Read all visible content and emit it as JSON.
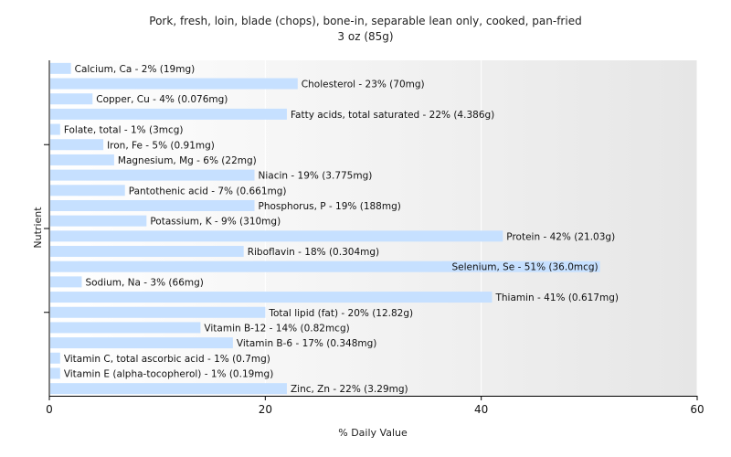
{
  "chart_data": {
    "type": "bar",
    "orientation": "horizontal",
    "title": "Pork, fresh, loin, blade (chops), bone-in, separable lean only, cooked, pan-fried",
    "subtitle": "3 oz (85g)",
    "xlabel": "% Daily Value",
    "ylabel": "Nutrient",
    "xlim": [
      0,
      60
    ],
    "xticks": [
      "0",
      "20",
      "40",
      "60"
    ],
    "grid": "vertical",
    "colors": {
      "bar": "#c6e0ff",
      "axis": "#000000",
      "plot_background_start": "#ffffff",
      "plot_background_end": "#e6e6e6"
    },
    "categories": [
      "Calcium, Ca",
      "Cholesterol",
      "Copper, Cu",
      "Fatty acids, total saturated",
      "Folate, total",
      "Iron, Fe",
      "Magnesium, Mg",
      "Niacin",
      "Pantothenic acid",
      "Phosphorus, P",
      "Potassium, K",
      "Protein",
      "Riboflavin",
      "Selenium, Se",
      "Sodium, Na",
      "Thiamin",
      "Total lipid (fat)",
      "Vitamin B-12",
      "Vitamin B-6",
      "Vitamin C, total ascorbic acid",
      "Vitamin E (alpha-tocopherol)",
      "Zinc, Zn"
    ],
    "values": [
      2,
      23,
      4,
      22,
      1,
      5,
      6,
      19,
      7,
      19,
      9,
      42,
      18,
      51,
      3,
      41,
      20,
      14,
      17,
      1,
      1,
      22
    ],
    "labels": [
      "Calcium, Ca - 2% (19mg)",
      "Cholesterol - 23% (70mg)",
      "Copper, Cu - 4% (0.076mg)",
      "Fatty acids, total saturated - 22% (4.386g)",
      "Folate, total - 1% (3mcg)",
      "Iron, Fe - 5% (0.91mg)",
      "Magnesium, Mg - 6% (22mg)",
      "Niacin - 19% (3.775mg)",
      "Pantothenic acid - 7% (0.661mg)",
      "Phosphorus, P - 19% (188mg)",
      "Potassium, K - 9% (310mg)",
      "Protein - 42% (21.03g)",
      "Riboflavin - 18% (0.304mg)",
      "Selenium, Se - 51% (36.0mcg)",
      "Sodium, Na - 3% (66mg)",
      "Thiamin - 41% (0.617mg)",
      "Total lipid (fat) - 20% (12.82g)",
      "Vitamin B-12 - 14% (0.82mcg)",
      "Vitamin B-6 - 17% (0.348mg)",
      "Vitamin C, total ascorbic acid - 1% (0.7mg)",
      "Vitamin E (alpha-tocopherol) - 1% (0.19mg)",
      "Zinc, Zn - 22% (3.29mg)"
    ]
  }
}
